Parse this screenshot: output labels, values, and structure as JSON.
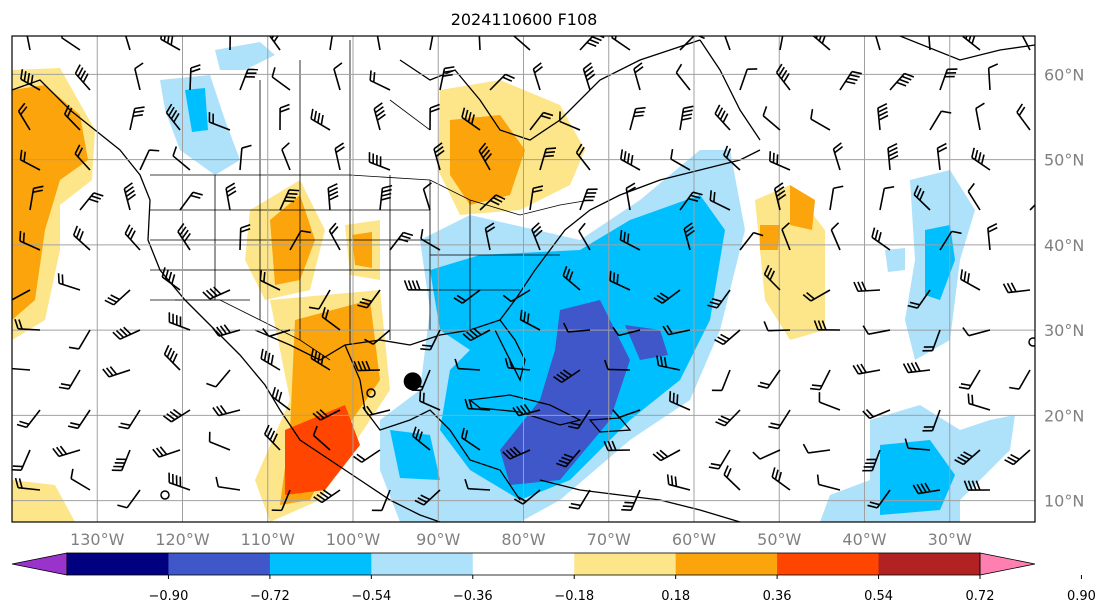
{
  "title": "2024110600 F108",
  "map": {
    "lon_labels": [
      "130°W",
      "120°W",
      "110°W",
      "100°W",
      "90°W",
      "80°W",
      "70°W",
      "60°W",
      "50°W",
      "40°W",
      "30°W"
    ],
    "lat_labels": [
      "60°N",
      "50°N",
      "40°N",
      "30°N",
      "20°N",
      "10°N"
    ],
    "lon_range": [
      -140,
      -20
    ],
    "lat_range": [
      7.5,
      64.5
    ],
    "grid_lons": [
      -130,
      -120,
      -110,
      -100,
      -90,
      -80,
      -70,
      -60,
      -50,
      -40,
      -30
    ],
    "grid_lats": [
      60,
      50,
      40,
      30,
      20,
      10
    ],
    "marker": {
      "lon": -93,
      "lat": 24
    },
    "contour_fill_colors": {
      "neg_low": "#aee1fa",
      "neg_mid": "#00bfff",
      "neg_high": "#3f57c8",
      "pos_low": "#fde68a",
      "pos_mid": "#fba40c",
      "pos_high": "#ff4500"
    }
  },
  "colorbar": {
    "colors": [
      "#9933cc",
      "#000080",
      "#3f57c8",
      "#00bfff",
      "#aee1fa",
      "#ffffff",
      "#fde68a",
      "#fba40c",
      "#ff4500",
      "#b22222",
      "#ff80b0"
    ],
    "ticks": [
      "−0.90",
      "−0.72",
      "−0.54",
      "−0.36",
      "−0.18",
      "0.18",
      "0.36",
      "0.54",
      "0.72",
      "0.90"
    ]
  }
}
